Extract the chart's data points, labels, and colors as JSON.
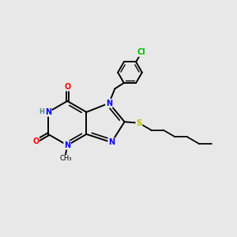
{
  "background_color": "#e8e8e8",
  "atom_colors": {
    "N": "#0000ff",
    "O": "#ff0000",
    "S": "#bbbb00",
    "Cl": "#00bb00",
    "C": "#000000",
    "H": "#5a8a8a"
  },
  "bond_color": "#000000",
  "bond_width": 1.4,
  "figsize": [
    3.0,
    3.0
  ],
  "dpi": 100
}
